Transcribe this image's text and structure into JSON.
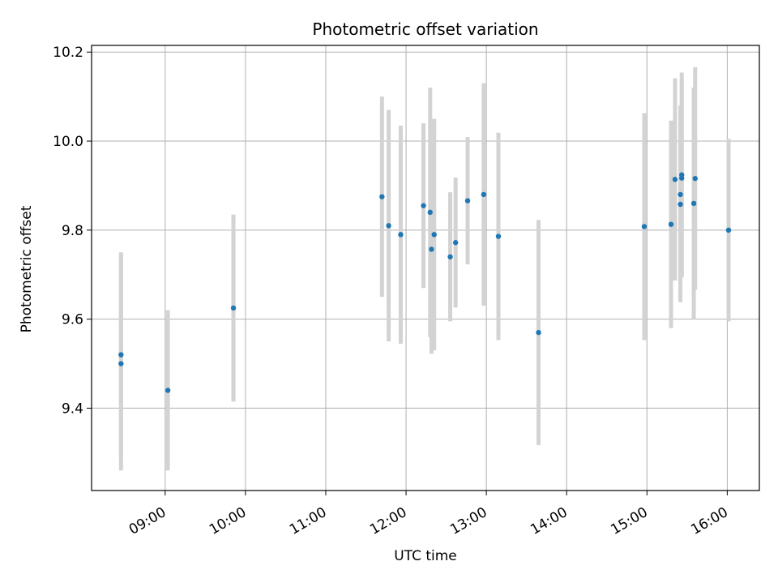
{
  "chart_data": {
    "type": "scatter",
    "title": "Photometric offset variation",
    "xlabel": "UTC time",
    "ylabel": "Photometric offset",
    "xlim": [
      "08:05",
      "16:24"
    ],
    "ylim": [
      9.215,
      10.215
    ],
    "xticks": [
      "09:00",
      "10:00",
      "11:00",
      "12:00",
      "13:00",
      "14:00",
      "15:00",
      "16:00"
    ],
    "yticks": [
      9.4,
      9.6,
      9.8,
      10.0,
      10.2
    ],
    "ytick_labels": [
      "9.4",
      "9.6",
      "9.8",
      "10.0",
      "10.2"
    ],
    "grid": true,
    "point_color": "#1f77b4",
    "errorbar_color": "#d3d3d3",
    "points": [
      {
        "x": "08:27",
        "y": 9.52,
        "err": 0.23
      },
      {
        "x": "08:27",
        "y": 9.5,
        "err": 0.24
      },
      {
        "x": "09:02",
        "y": 9.44,
        "err": 0.18
      },
      {
        "x": "09:51",
        "y": 9.625,
        "err": 0.21
      },
      {
        "x": "11:42",
        "y": 9.875,
        "err": 0.225
      },
      {
        "x": "11:47",
        "y": 9.81,
        "err": 0.26
      },
      {
        "x": "11:56",
        "y": 9.79,
        "err": 0.245
      },
      {
        "x": "12:13",
        "y": 9.855,
        "err": 0.185
      },
      {
        "x": "12:18",
        "y": 9.84,
        "err": 0.28
      },
      {
        "x": "12:19",
        "y": 9.757,
        "err": 0.235
      },
      {
        "x": "12:21",
        "y": 9.79,
        "err": 0.26
      },
      {
        "x": "12:33",
        "y": 9.74,
        "err": 0.145
      },
      {
        "x": "12:37",
        "y": 9.772,
        "err": 0.146
      },
      {
        "x": "12:46",
        "y": 9.866,
        "err": 0.143
      },
      {
        "x": "12:58",
        "y": 9.88,
        "err": 0.25
      },
      {
        "x": "13:09",
        "y": 9.786,
        "err": 0.233
      },
      {
        "x": "13:39",
        "y": 9.57,
        "err": 0.253
      },
      {
        "x": "14:58",
        "y": 9.808,
        "err": 0.255
      },
      {
        "x": "15:18",
        "y": 9.813,
        "err": 0.233
      },
      {
        "x": "15:21",
        "y": 9.914,
        "err": 0.227
      },
      {
        "x": "15:25",
        "y": 9.858,
        "err": 0.22
      },
      {
        "x": "15:25",
        "y": 9.88,
        "err": 0.2
      },
      {
        "x": "15:26",
        "y": 9.924,
        "err": 0.23
      },
      {
        "x": "15:26",
        "y": 9.917,
        "err": 0.22
      },
      {
        "x": "15:35",
        "y": 9.86,
        "err": 0.26
      },
      {
        "x": "15:36",
        "y": 9.916,
        "err": 0.25
      },
      {
        "x": "16:01",
        "y": 9.8,
        "err": 0.205
      }
    ]
  }
}
